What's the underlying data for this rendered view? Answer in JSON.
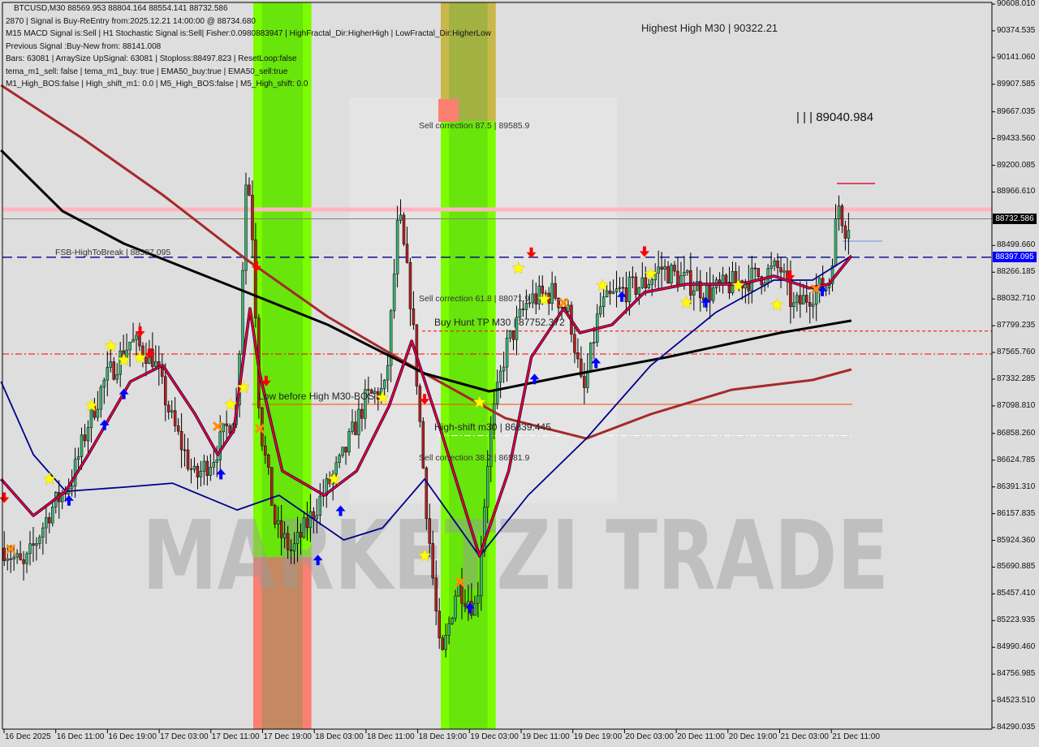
{
  "header": {
    "symbol_line": "BTCUSD,M30  88569.953 88804.164 88554.141 88732.586",
    "lines": [
      "2870 | Signal is Buy-ReEntry from:2025.12.21 14:00:00 @ 88734.680",
      "M15 MACD Signal is:Sell | H1 Stochastic Signal is:Sell| Fisher:0.0980883947 | HighFractal_Dir:HigherHigh | LowFractal_Dir:HigherLow",
      "Previous Signal :Buy-New from: 88141.008",
      "Bars: 63081 | ArraySize UpSignal: 63081 | Stoploss:88497.823 | ResetLoop:false",
      "tema_m1_sell: false | tema_m1_buy: true | EMA50_buy:true | EMA50_sell:true",
      "M1_High_BOS:false | High_shift_m1: 0.0 | M5_High_BOS:false | M5_High_shift: 0.0"
    ]
  },
  "annotations": {
    "highest_high": "Highest High   M30 | 90322.21",
    "sell_875": "Sell correction 87.5 | 89585.9",
    "sell_618": "Sell correction 61.8 | 88071.9",
    "sell_382": "Sell correction 38.2 | 86581.9",
    "buy_hunt": "Buy Hunt TP M30  | 87752.372",
    "fsb": "FSB-HighToBreak  | 88397.095",
    "low_before_high": "Low before High   M30-BOS",
    "high_shift": "High-shift m30 | 86839.445",
    "top_level": "| | | 89040.984"
  },
  "watermark": "MARKETZI TRADE",
  "price_badges": {
    "current": "88732.586",
    "fsb": "88397.095"
  },
  "colors": {
    "bg": "#dcdcdc",
    "bull": "#3cb371",
    "bear": "#b22222",
    "ma_black": "#000000",
    "ma_brown": "#a52a2a",
    "ma_navy": "#00008b",
    "tema": "#ff0000",
    "zone_green": "#7cfc00",
    "zone_salmon": "#fa8072",
    "zone_olive": "#c8b84a"
  },
  "chart_data": {
    "type": "candlestick",
    "title": "BTCUSD,M30",
    "ylim": [
      84290.035,
      90608.01
    ],
    "y_ticks": [
      "90608.010",
      "90374.535",
      "90141.060",
      "89907.585",
      "89667.035",
      "89433.560",
      "89200.085",
      "88966.610",
      "88732.586",
      "88499.660",
      "88397.095",
      "88266.185",
      "88032.710",
      "87799.235",
      "87565.760",
      "87332.285",
      "87098.810",
      "86858.260",
      "86624.785",
      "86391.310",
      "86157.835",
      "85924.360",
      "85690.885",
      "85457.410",
      "85223.935",
      "84990.460",
      "84756.985",
      "84523.510",
      "84290.035"
    ],
    "x_ticks": [
      "16 Dec 2025",
      "16 Dec 11:00",
      "16 Dec 19:00",
      "17 Dec 03:00",
      "17 Dec 11:00",
      "17 Dec 19:00",
      "18 Dec 03:00",
      "18 Dec 11:00",
      "18 Dec 19:00",
      "19 Dec 03:00",
      "19 Dec 11:00",
      "19 Dec 19:00",
      "20 Dec 03:00",
      "20 Dec 11:00",
      "20 Dec 19:00",
      "21 Dec 03:00",
      "21 Dec 11:00"
    ],
    "price_path": [
      [
        "16 03:30",
        85857
      ],
      [
        "16 06:30",
        85680
      ],
      [
        "16 10:30",
        86176
      ],
      [
        "16 14:00",
        86460
      ],
      [
        "16 16:30",
        86956
      ],
      [
        "16 19:00",
        87311
      ],
      [
        "16 23:00",
        87665
      ],
      [
        "17 02:30",
        87524
      ],
      [
        "17 05:30",
        86956
      ],
      [
        "17 09:00",
        86460
      ],
      [
        "17 12:00",
        86673
      ],
      [
        "17 15:30",
        87098
      ],
      [
        "17 17:00",
        89225
      ],
      [
        "17 18:00",
        88516
      ],
      [
        "17 19:00",
        86956
      ],
      [
        "17 21:30",
        86034
      ],
      [
        "18 00:00",
        85821
      ],
      [
        "18 04:00",
        86247
      ],
      [
        "18 07:30",
        86601
      ],
      [
        "18 11:30",
        87169
      ],
      [
        "18 14:30",
        87240
      ],
      [
        "18 16:30",
        88800
      ],
      [
        "18 18:30",
        87949
      ],
      [
        "18 20:30",
        86389
      ],
      [
        "18 23:00",
        84828
      ],
      [
        "19 01:30",
        85538
      ],
      [
        "19 04:30",
        85325
      ],
      [
        "19 06:30",
        86814
      ],
      [
        "19 09:00",
        87594
      ],
      [
        "19 12:30",
        88020
      ],
      [
        "19 16:30",
        88091
      ],
      [
        "19 19:00",
        87878
      ],
      [
        "19 21:00",
        87169
      ],
      [
        "19 23:30",
        87949
      ],
      [
        "20 02:30",
        88091
      ],
      [
        "20 06:30",
        88162
      ],
      [
        "20 09:00",
        88304
      ],
      [
        "20 12:30",
        88197
      ],
      [
        "20 16:30",
        88091
      ],
      [
        "20 20:00",
        88162
      ],
      [
        "21 00:00",
        88233
      ],
      [
        "21 03:30",
        88304
      ],
      [
        "21 05:30",
        87949
      ],
      [
        "21 08:30",
        88091
      ],
      [
        "21 11:00",
        88162
      ],
      [
        "21 12:30",
        88871
      ],
      [
        "21 13:30",
        88658
      ],
      [
        "21 14:30",
        88733
      ]
    ],
    "lines": {
      "ma_black": [
        [
          "16 03:00",
          89332
        ],
        [
          "16 12:30",
          88800
        ],
        [
          "16 22:00",
          88516
        ],
        [
          "17 17:00",
          88091
        ],
        [
          "18 05:30",
          87808
        ],
        [
          "18 20:30",
          87382
        ],
        [
          "19 06:30",
          87226
        ],
        [
          "19 19:00",
          87367
        ],
        [
          "20 10:00",
          87524
        ],
        [
          "21 03:30",
          87737
        ],
        [
          "21 14:30",
          87843
        ]
      ],
      "ma_brown": [
        [
          "16 03:00",
          89899
        ],
        [
          "16 15:30",
          89438
        ],
        [
          "17 04:00",
          88942
        ],
        [
          "17 17:00",
          88375
        ],
        [
          "18 05:30",
          87878
        ],
        [
          "18 20:30",
          87382
        ],
        [
          "19 09:00",
          86991
        ],
        [
          "19 21:30",
          86814
        ],
        [
          "20 07:30",
          87027
        ],
        [
          "20 20:00",
          87240
        ],
        [
          "21 08:30",
          87325
        ],
        [
          "21 14:30",
          87417
        ]
      ],
      "ma_navy": [
        [
          "16 03:00",
          87311
        ],
        [
          "16 08:00",
          86673
        ],
        [
          "16 13:00",
          86353
        ],
        [
          "16 22:00",
          86389
        ],
        [
          "17 05:30",
          86424
        ],
        [
          "17 15:30",
          86190
        ],
        [
          "17 22:00",
          86318
        ],
        [
          "18 08:00",
          85928
        ],
        [
          "18 14:00",
          86034
        ],
        [
          "18 20:30",
          86460
        ],
        [
          "19 05:00",
          85786
        ],
        [
          "19 12:30",
          86318
        ],
        [
          "19 21:30",
          86814
        ],
        [
          "20 07:30",
          87453
        ],
        [
          "20 17:30",
          87914
        ],
        [
          "21 02:30",
          88197
        ],
        [
          "21 08:30",
          88197
        ],
        [
          "21 14:30",
          88410
        ]
      ],
      "tema_red": [
        [
          "16 03:00",
          86460
        ],
        [
          "16 08:00",
          86141
        ],
        [
          "16 13:00",
          86353
        ],
        [
          "16 16:30",
          86673
        ],
        [
          "16 23:00",
          87311
        ],
        [
          "17 04:00",
          87453
        ],
        [
          "17 09:00",
          87027
        ],
        [
          "17 12:30",
          86673
        ],
        [
          "17 15:00",
          86885
        ],
        [
          "17 17:30",
          87949
        ],
        [
          "17 19:00",
          87382
        ],
        [
          "17 22:30",
          86531
        ],
        [
          "18 05:00",
          86318
        ],
        [
          "18 10:00",
          86531
        ],
        [
          "18 15:00",
          87098
        ],
        [
          "18 18:30",
          87665
        ],
        [
          "18 23:00",
          86885
        ],
        [
          "19 05:00",
          85786
        ],
        [
          "19 09:30",
          86531
        ],
        [
          "19 13:00",
          87524
        ],
        [
          "19 18:00",
          87949
        ],
        [
          "19 20:30",
          87737
        ],
        [
          "20 01:30",
          87808
        ],
        [
          "20 06:30",
          88091
        ],
        [
          "20 13:00",
          88162
        ],
        [
          "20 21:30",
          88162
        ],
        [
          "21 02:30",
          88233
        ],
        [
          "21 08:00",
          88127
        ],
        [
          "21 11:00",
          88162
        ],
        [
          "21 14:30",
          88410
        ]
      ]
    },
    "levels": [
      {
        "name": "pink",
        "price": 88814
      },
      {
        "name": "current",
        "price": 88732.586
      },
      {
        "name": "fsb",
        "price": 88397.095
      },
      {
        "name": "buy_hunt",
        "price": 87752.372
      },
      {
        "name": "red_dashdot",
        "price": 87552
      },
      {
        "name": "orange",
        "price": 87112
      },
      {
        "name": "high_shift",
        "price": 86839.445
      }
    ],
    "zones": [
      {
        "from": "17 18:00",
        "to": "18 03:00",
        "split": 85778,
        "upper": "green",
        "lower": "salmon"
      },
      {
        "from": "18 23:00",
        "to": "19 07:30",
        "split": 89585.9,
        "upper": "olive",
        "lower": "green"
      }
    ],
    "markers": [
      {
        "t": "16 10:30",
        "p": 86460,
        "type": "star"
      },
      {
        "t": "16 17:00",
        "p": 87100,
        "type": "star"
      },
      {
        "t": "16 20:00",
        "p": 87620,
        "type": "star"
      },
      {
        "t": "16 22:00",
        "p": 87500,
        "type": "star"
      },
      {
        "t": "17 00:30",
        "p": 87520,
        "type": "star"
      },
      {
        "t": "17 14:30",
        "p": 87110,
        "type": "star"
      },
      {
        "t": "17 16:30",
        "p": 87260,
        "type": "star"
      },
      {
        "t": "18 06:30",
        "p": 86460,
        "type": "star"
      },
      {
        "t": "18 14:00",
        "p": 87170,
        "type": "star"
      },
      {
        "t": "18 20:30",
        "p": 85790,
        "type": "star"
      },
      {
        "t": "19 05:00",
        "p": 87130,
        "type": "star"
      },
      {
        "t": "19 11:00",
        "p": 88300,
        "type": "star"
      },
      {
        "t": "19 15:00",
        "p": 88030,
        "type": "star"
      },
      {
        "t": "20 00:00",
        "p": 88150,
        "type": "star"
      },
      {
        "t": "20 07:30",
        "p": 88250,
        "type": "star"
      },
      {
        "t": "20 13:00",
        "p": 88000,
        "type": "star"
      },
      {
        "t": "20 21:00",
        "p": 88150,
        "type": "star"
      },
      {
        "t": "21 03:00",
        "p": 87980,
        "type": "star"
      },
      {
        "t": "16 13:30",
        "p": 86270,
        "type": "up"
      },
      {
        "t": "16 19:00",
        "p": 86930,
        "type": "up"
      },
      {
        "t": "16 22:00",
        "p": 87200,
        "type": "up"
      },
      {
        "t": "17 13:00",
        "p": 86500,
        "type": "up"
      },
      {
        "t": "18 04:00",
        "p": 85750,
        "type": "up"
      },
      {
        "t": "18 07:30",
        "p": 86180,
        "type": "up"
      },
      {
        "t": "19 03:30",
        "p": 85330,
        "type": "up"
      },
      {
        "t": "19 13:30",
        "p": 87330,
        "type": "up"
      },
      {
        "t": "19 23:00",
        "p": 87470,
        "type": "up"
      },
      {
        "t": "20 03:00",
        "p": 88050,
        "type": "up"
      },
      {
        "t": "20 16:00",
        "p": 88000,
        "type": "up"
      },
      {
        "t": "21 10:00",
        "p": 88100,
        "type": "up"
      },
      {
        "t": "16 03:30",
        "p": 86300,
        "type": "down"
      },
      {
        "t": "17 00:30",
        "p": 87750,
        "type": "down"
      },
      {
        "t": "17 02:00",
        "p": 87560,
        "type": "down"
      },
      {
        "t": "17 18:30",
        "p": 88320,
        "type": "down"
      },
      {
        "t": "17 20:00",
        "p": 87320,
        "type": "down"
      },
      {
        "t": "18 20:30",
        "p": 87160,
        "type": "down"
      },
      {
        "t": "19 13:00",
        "p": 88440,
        "type": "down"
      },
      {
        "t": "20 06:30",
        "p": 88450,
        "type": "down"
      },
      {
        "t": "21 05:00",
        "p": 88240,
        "type": "down"
      },
      {
        "t": "16 04:30",
        "p": 85850,
        "type": "x"
      },
      {
        "t": "17 12:30",
        "p": 86920,
        "type": "x"
      },
      {
        "t": "17 19:00",
        "p": 86900,
        "type": "x"
      },
      {
        "t": "19 02:00",
        "p": 85560,
        "type": "x"
      },
      {
        "t": "19 18:00",
        "p": 88000,
        "type": "x"
      },
      {
        "t": "21 09:00",
        "p": 88120,
        "type": "x"
      }
    ]
  }
}
